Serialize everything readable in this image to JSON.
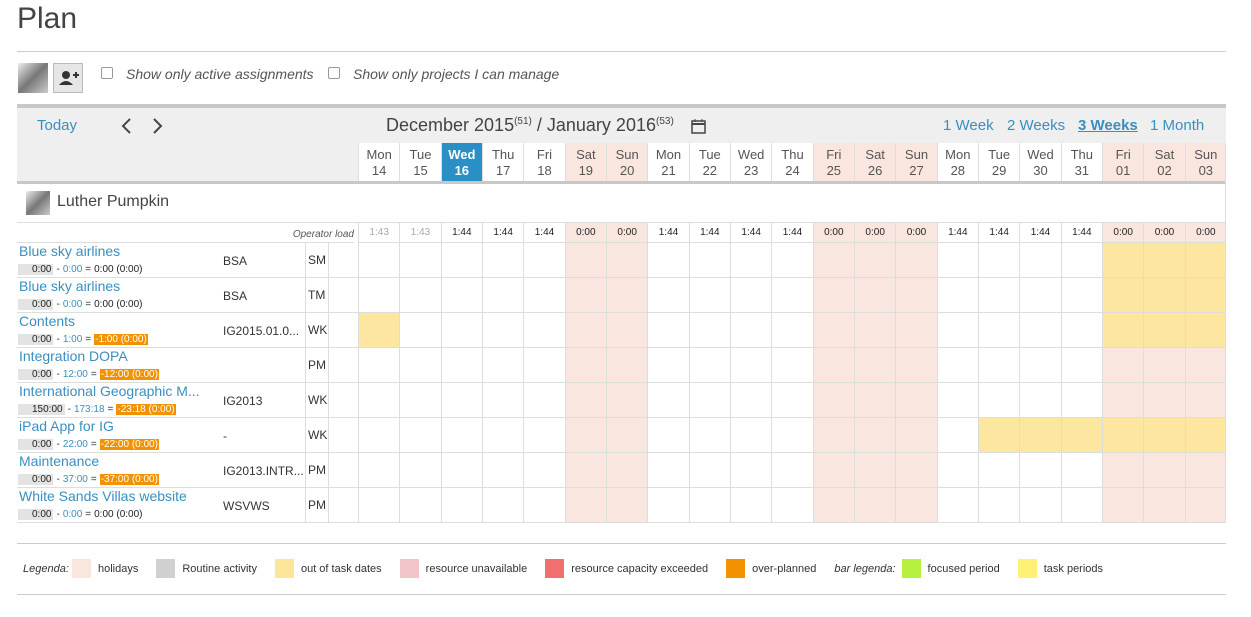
{
  "page": {
    "title": "Plan"
  },
  "toolbar": {
    "filters": [
      "Show only active assignments",
      "Show only projects I can manage"
    ]
  },
  "navigation": {
    "today": "Today",
    "period": {
      "start": "December 2015",
      "start_week": "(51)",
      "separator": "/",
      "end": "January 2016",
      "end_week": "(53)"
    },
    "ranges": [
      {
        "label": "1 Week"
      },
      {
        "label": "2 Weeks"
      },
      {
        "label": "3 Weeks",
        "active": true
      },
      {
        "label": "1 Month"
      }
    ]
  },
  "days": [
    {
      "weekday": "Mon",
      "date": "14",
      "holiday": false,
      "load": "1:43"
    },
    {
      "weekday": "Tue",
      "date": "15",
      "holiday": false,
      "load": "1:43"
    },
    {
      "weekday": "Wed",
      "date": "16",
      "holiday": false,
      "load": "1:44",
      "today": true
    },
    {
      "weekday": "Thu",
      "date": "17",
      "holiday": false,
      "load": "1:44"
    },
    {
      "weekday": "Fri",
      "date": "18",
      "holiday": false,
      "load": "1:44"
    },
    {
      "weekday": "Sat",
      "date": "19",
      "holiday": true,
      "load": "0:00"
    },
    {
      "weekday": "Sun",
      "date": "20",
      "holiday": true,
      "load": "0:00"
    },
    {
      "weekday": "Mon",
      "date": "21",
      "holiday": false,
      "load": "1:44"
    },
    {
      "weekday": "Tue",
      "date": "22",
      "holiday": false,
      "load": "1:44"
    },
    {
      "weekday": "Wed",
      "date": "23",
      "holiday": false,
      "load": "1:44"
    },
    {
      "weekday": "Thu",
      "date": "24",
      "holiday": false,
      "load": "1:44"
    },
    {
      "weekday": "Fri",
      "date": "25",
      "holiday": true,
      "load": "0:00"
    },
    {
      "weekday": "Sat",
      "date": "26",
      "holiday": true,
      "load": "0:00"
    },
    {
      "weekday": "Sun",
      "date": "27",
      "holiday": true,
      "load": "0:00"
    },
    {
      "weekday": "Mon",
      "date": "28",
      "holiday": false,
      "load": "1:44"
    },
    {
      "weekday": "Tue",
      "date": "29",
      "holiday": false,
      "load": "1:44"
    },
    {
      "weekday": "Wed",
      "date": "30",
      "holiday": false,
      "load": "1:44"
    },
    {
      "weekday": "Thu",
      "date": "31",
      "holiday": false,
      "load": "1:44"
    },
    {
      "weekday": "Fri",
      "date": "01",
      "holiday": true,
      "load": "0:00"
    },
    {
      "weekday": "Sat",
      "date": "02",
      "holiday": true,
      "load": "0:00"
    },
    {
      "weekday": "Sun",
      "date": "03",
      "holiday": true,
      "load": "0:00"
    }
  ],
  "resource": {
    "name": "Luther Pumpkin",
    "load_label": "Operator load"
  },
  "hours_separators": [
    "-",
    "="
  ],
  "assignments": [
    {
      "name": "Blue sky airlines",
      "worked": "0:00",
      "planned": "0:00",
      "balance": "0:00 (0:00)",
      "over": false,
      "code": "BSA",
      "role": "SM",
      "out_of_dates": [
        18,
        19,
        20
      ]
    },
    {
      "name": "Blue sky airlines",
      "worked": "0:00",
      "planned": "0:00",
      "balance": "0:00 (0:00)",
      "over": false,
      "code": "BSA",
      "role": "TM",
      "out_of_dates": [
        18,
        19,
        20
      ]
    },
    {
      "name": "Contents",
      "worked": "0:00",
      "planned": "1:00",
      "balance": "-1:00 (0:00)",
      "over": true,
      "code": "IG2015.01.0...",
      "role": "WK",
      "out_of_dates": [
        0,
        18,
        19,
        20
      ]
    },
    {
      "name": "Integration DOPA",
      "worked": "0:00",
      "planned": "12:00",
      "balance": "-12:00 (0:00)",
      "over": true,
      "role": "PM"
    },
    {
      "name": "International Geographic M...",
      "worked": "150:00",
      "planned": "173:18",
      "balance": "-23:18 (0:00)",
      "over": true,
      "code": "IG2013",
      "role": "WK"
    },
    {
      "name": "iPad App for IG",
      "worked": "0:00",
      "planned": "22:00",
      "balance": "-22:00 (0:00)",
      "over": true,
      "code": "-",
      "role": "WK",
      "out_of_dates": [
        15,
        16,
        17,
        18,
        19,
        20
      ]
    },
    {
      "name": "Maintenance",
      "worked": "0:00",
      "planned": "37:00",
      "balance": "-37:00 (0:00)",
      "over": true,
      "code": "IG2013.INTR...",
      "role": "PM"
    },
    {
      "name": "White Sands Villas website",
      "worked": "0:00",
      "planned": "0:00",
      "balance": "0:00 (0:00)",
      "over": false,
      "code": "WSVWS",
      "role": "PM"
    }
  ],
  "colors": {
    "holiday": "#f9e6df",
    "out_of_dates": "#fde7a0",
    "today": "#2a8fc4"
  },
  "legend": {
    "label": "Legenda:",
    "items": [
      {
        "label": "holidays",
        "color": "#f9e6df"
      },
      {
        "label": "Routine activity",
        "color": "#d0d0d0"
      },
      {
        "label": "out of task dates",
        "color": "#fde59a"
      },
      {
        "label": "resource unavailable",
        "color": "#f0c4c8"
      },
      {
        "label": "resource capacity exceeded",
        "color": "#f07070"
      },
      {
        "label": "over-planned",
        "color": "#f39200"
      }
    ],
    "bar_label": "bar legenda:",
    "bar_items": [
      {
        "label": "focused period",
        "color": "#b8f040"
      },
      {
        "label": "task periods",
        "color": "#fff176"
      }
    ]
  }
}
